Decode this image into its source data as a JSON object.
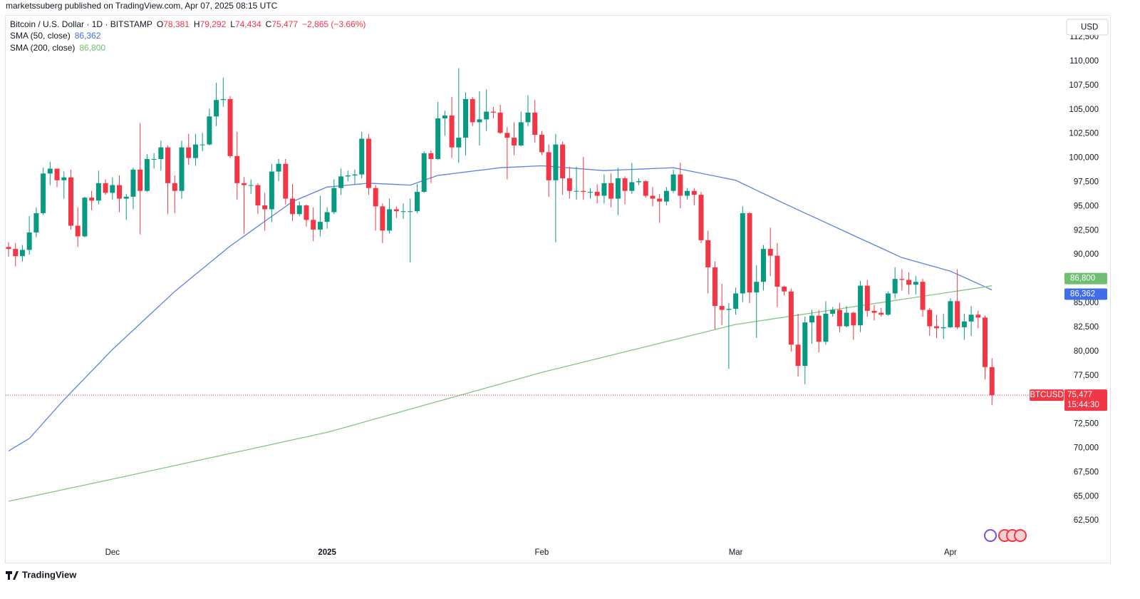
{
  "header": {
    "attribution": "marketssuberg published on TradingView.com, Apr 07, 2025 08:15 UTC",
    "brand": "TradingView"
  },
  "chart_data": {
    "type": "candlestick",
    "title": "Bitcoin / U.S. Dollar · 1D · BITSTAMP",
    "ohlc": [
      {
        "name": "O",
        "label": "78,381"
      },
      {
        "name": "H",
        "label": "79,292"
      },
      {
        "name": "L",
        "label": "74,434"
      },
      {
        "name": "C",
        "label": "75,477"
      }
    ],
    "change_label": "−2,865 (−3.66%)",
    "currency": "USD",
    "symbol": "BTCUSD",
    "last_label": "75,477",
    "countdown": "15:44:30",
    "up_color": "#089981",
    "down_color": "#f23645",
    "categories": [
      null,
      null,
      null,
      null,
      null,
      null,
      null,
      null,
      null,
      null,
      null,
      null,
      null,
      null,
      null,
      "Dec",
      null,
      null,
      null,
      null,
      null,
      null,
      null,
      null,
      null,
      null,
      null,
      null,
      null,
      null,
      null,
      null,
      null,
      null,
      null,
      null,
      null,
      null,
      null,
      null,
      null,
      null,
      null,
      null,
      null,
      null,
      "2025",
      null,
      null,
      null,
      null,
      null,
      null,
      null,
      null,
      null,
      null,
      null,
      null,
      null,
      null,
      null,
      null,
      null,
      null,
      null,
      null,
      null,
      null,
      null,
      null,
      null,
      null,
      null,
      null,
      null,
      null,
      "Feb",
      null,
      null,
      null,
      null,
      null,
      null,
      null,
      null,
      null,
      null,
      null,
      null,
      null,
      null,
      null,
      null,
      null,
      null,
      null,
      null,
      null,
      null,
      null,
      null,
      null,
      null,
      null,
      "Mar",
      null,
      null,
      null,
      null,
      null,
      null,
      null,
      null,
      null,
      null,
      null,
      null,
      null,
      null,
      null,
      null,
      null,
      null,
      null,
      null,
      null,
      null,
      null,
      null,
      null,
      null,
      null,
      null,
      null,
      null,
      "Apr",
      null,
      null,
      null,
      null,
      null,
      null
    ],
    "open": [
      90800,
      90600,
      89850,
      90500,
      92300,
      94300,
      98400,
      98900,
      97700,
      98000,
      93000,
      91900,
      95900,
      95600,
      97400,
      96400,
      97200,
      95800,
      96000,
      98800,
      96600,
      99900,
      99900,
      101100,
      97400,
      96600,
      101100,
      100000,
      101400,
      101400,
      104300,
      106000,
      106100,
      100200,
      97400,
      97200,
      97200,
      95100,
      94700,
      98600,
      99400,
      95800,
      94200,
      95100,
      93600,
      92600,
      93400,
      94400,
      96900,
      98100,
      98200,
      98300,
      102000,
      96900,
      95000,
      92500,
      94700,
      94500,
      94500,
      94500,
      96500,
      100500,
      99900,
      104100,
      104400,
      101100,
      102100,
      106100,
      103700,
      104000,
      104800,
      104700,
      102600,
      102100,
      101300,
      103700,
      104700,
      102400,
      100600,
      97700,
      101400,
      97900,
      96600,
      96600,
      96500,
      96500,
      96100,
      97400,
      95800,
      97900,
      96600,
      97500,
      97600,
      96100,
      95800,
      95500,
      96600,
      98300,
      96100,
      96600,
      96200,
      91500,
      88700,
      84700,
      84300,
      84400,
      86000,
      94300,
      86100,
      87200,
      90600,
      89900,
      86700,
      86200,
      80700,
      78500,
      83000,
      83700,
      81000,
      83900,
      84300,
      82600,
      84000,
      82700,
      86800,
      84200,
      84000,
      83800,
      86000,
      87500,
      87400,
      86900,
      87200,
      84300,
      82600,
      82400,
      82500,
      85200,
      82500,
      83100,
      83800,
      83500,
      78381
    ],
    "high": [
      91300,
      91200,
      91000,
      94000,
      94900,
      99000,
      99600,
      98700,
      98600,
      98800,
      94900,
      96000,
      96600,
      98700,
      97800,
      98000,
      98200,
      96300,
      99000,
      103600,
      100400,
      100500,
      101800,
      101300,
      98200,
      101800,
      102500,
      102500,
      102600,
      105100,
      107800,
      108300,
      106400,
      102700,
      98000,
      97800,
      97400,
      96400,
      99400,
      99900,
      99900,
      97300,
      95500,
      95200,
      94900,
      96100,
      94900,
      97800,
      98900,
      98700,
      98800,
      102700,
      102500,
      97200,
      95300,
      95800,
      95000,
      95300,
      95800,
      97300,
      100700,
      100800,
      105800,
      104900,
      106300,
      109300,
      106800,
      106300,
      106900,
      107100,
      105300,
      105500,
      103200,
      103700,
      104800,
      106500,
      106000,
      102800,
      101400,
      102500,
      101700,
      99100,
      99100,
      100100,
      96900,
      97300,
      98300,
      98400,
      99000,
      98100,
      99500,
      97900,
      97700,
      97000,
      96300,
      97000,
      98800,
      99500,
      96900,
      96900,
      96500,
      92500,
      89300,
      87000,
      85000,
      86600,
      95000,
      94400,
      88900,
      91000,
      92800,
      91200,
      86800,
      86500,
      83900,
      83600,
      84300,
      84300,
      85200,
      84600,
      85000,
      84700,
      84100,
      87300,
      87400,
      84800,
      84500,
      86200,
      88700,
      88500,
      88200,
      87800,
      87500,
      84500,
      83800,
      83900,
      85500,
      88500,
      83900,
      84700,
      84200,
      83700,
      79292
    ],
    "low": [
      89800,
      88800,
      89300,
      90000,
      91800,
      94100,
      97200,
      97000,
      95800,
      92600,
      90800,
      91800,
      94600,
      95200,
      96200,
      95700,
      94400,
      93600,
      94700,
      92100,
      96500,
      98900,
      98700,
      94200,
      94300,
      95800,
      99300,
      99200,
      100700,
      101300,
      103300,
      105300,
      100000,
      95700,
      92200,
      96300,
      94200,
      92500,
      93400,
      97600,
      95200,
      93500,
      94000,
      92900,
      91400,
      91900,
      92700,
      94200,
      96200,
      97600,
      97300,
      97900,
      96200,
      92500,
      91200,
      92200,
      93800,
      93700,
      89200,
      94300,
      96400,
      97400,
      99800,
      102300,
      100000,
      99500,
      100300,
      103300,
      101300,
      102800,
      104100,
      102500,
      97800,
      100300,
      101200,
      103300,
      101600,
      100300,
      96000,
      91300,
      96200,
      95800,
      95700,
      95700,
      95800,
      95300,
      95300,
      94900,
      94100,
      95200,
      96300,
      97200,
      95900,
      95000,
      93300,
      95100,
      96400,
      94800,
      95700,
      95100,
      91200,
      86000,
      82300,
      82700,
      78200,
      83800,
      85100,
      85000,
      81400,
      86300,
      87800,
      84600,
      85800,
      80000,
      77400,
      76600,
      80800,
      79900,
      80700,
      83600,
      82000,
      82500,
      81200,
      82000,
      83600,
      83200,
      83600,
      83700,
      85500,
      86300,
      85900,
      85900,
      83600,
      81600,
      81400,
      81300,
      82400,
      82300,
      81200,
      81600,
      82400,
      77100,
      74434
    ],
    "close": [
      90600,
      89850,
      90500,
      92300,
      94300,
      98400,
      98900,
      97700,
      98000,
      93000,
      91900,
      95900,
      95600,
      97400,
      96400,
      97200,
      95800,
      96000,
      98800,
      96600,
      99900,
      99900,
      101100,
      97400,
      96600,
      101100,
      100000,
      101400,
      101400,
      104300,
      106000,
      106100,
      100200,
      97400,
      97200,
      97200,
      95100,
      94700,
      98600,
      99400,
      95800,
      94200,
      95100,
      93600,
      92600,
      93400,
      94400,
      96900,
      98100,
      98200,
      98300,
      102000,
      96900,
      95000,
      92500,
      94700,
      94500,
      94500,
      94500,
      96500,
      100500,
      99900,
      104100,
      104400,
      101100,
      102100,
      106100,
      103700,
      104000,
      104800,
      104700,
      102600,
      102100,
      101300,
      103700,
      104700,
      102400,
      100600,
      97700,
      101400,
      97900,
      96600,
      96600,
      96500,
      96500,
      96100,
      97400,
      95800,
      97900,
      96600,
      97500,
      97600,
      96100,
      95800,
      95500,
      96600,
      98300,
      96100,
      96600,
      96200,
      91500,
      88700,
      84700,
      84300,
      84400,
      86000,
      94300,
      86100,
      87200,
      90600,
      89900,
      86700,
      86200,
      80700,
      78500,
      83000,
      83700,
      81000,
      83900,
      84300,
      82600,
      84000,
      82700,
      86800,
      84200,
      84000,
      83800,
      86000,
      87500,
      87400,
      86900,
      87200,
      84300,
      82600,
      82400,
      82500,
      85200,
      82500,
      83100,
      83800,
      83500,
      78381,
      75477
    ],
    "series": [
      {
        "name": "SMA (50, close)",
        "color": "#5b82e0",
        "label_color": "#3f6ee8",
        "last_label": "86,362",
        "values": [
          69700,
          70133,
          70567,
          71000,
          71800,
          72600,
          73400,
          74200,
          75000,
          75743,
          76486,
          77229,
          77971,
          78714,
          79457,
          80200,
          80867,
          81533,
          82200,
          82867,
          83533,
          84200,
          84867,
          85533,
          86200,
          86788,
          87375,
          87963,
          88550,
          89138,
          89725,
          90313,
          90900,
          91411,
          91922,
          92433,
          92944,
          93456,
          93967,
          94478,
          94989,
          95500,
          95800,
          96100,
          96400,
          96700,
          97000,
          97067,
          97133,
          97200,
          97267,
          97333,
          97400,
          97367,
          97333,
          97300,
          97267,
          97233,
          97200,
          97450,
          97700,
          97950,
          98200,
          98289,
          98378,
          98467,
          98556,
          98644,
          98733,
          98822,
          98911,
          99000,
          99033,
          99067,
          99100,
          99133,
          99167,
          99200,
          99144,
          99089,
          99033,
          98978,
          98922,
          98867,
          98811,
          98756,
          98700,
          98730,
          98760,
          98790,
          98820,
          98850,
          98880,
          98910,
          98940,
          98970,
          99000,
          98856,
          98711,
          98567,
          98422,
          98278,
          98133,
          97989,
          97844,
          97700,
          97357,
          97014,
          96671,
          96329,
          95986,
          95643,
          95300,
          94970,
          94640,
          94310,
          93980,
          93650,
          93320,
          92990,
          92660,
          92330,
          92000,
          91671,
          91343,
          91014,
          90686,
          90357,
          90029,
          89700,
          89500,
          89300,
          89100,
          88900,
          88700,
          88500,
          88300,
          87977,
          87654,
          87331,
          87008,
          86685,
          86362
        ]
      },
      {
        "name": "SMA (200, close)",
        "color": "#81c784",
        "label_color": "#6fbf73",
        "last_label": "86,800",
        "values": [
          64500,
          64653,
          64806,
          64959,
          65112,
          65265,
          65418,
          65571,
          65724,
          65877,
          66030,
          66183,
          66336,
          66489,
          66642,
          66795,
          66951,
          67107,
          67263,
          67419,
          67575,
          67731,
          67887,
          68043,
          68199,
          68355,
          68511,
          68667,
          68823,
          68979,
          69135,
          69291,
          69447,
          69603,
          69759,
          69915,
          70071,
          70227,
          70383,
          70539,
          70695,
          70851,
          71007,
          71163,
          71319,
          71475,
          71631,
          71831,
          72031,
          72231,
          72431,
          72631,
          72831,
          73031,
          73231,
          73431,
          73631,
          73831,
          74031,
          74231,
          74431,
          74631,
          74831,
          75031,
          75231,
          75431,
          75631,
          75831,
          76031,
          76231,
          76431,
          76631,
          76831,
          77031,
          77231,
          77431,
          77631,
          77831,
          78008,
          78185,
          78362,
          78539,
          78716,
          78893,
          79070,
          79247,
          79424,
          79601,
          79778,
          79955,
          80132,
          80309,
          80486,
          80663,
          80840,
          81017,
          81194,
          81371,
          81548,
          81725,
          81902,
          82079,
          82256,
          82433,
          82610,
          82787,
          82895,
          83003,
          83111,
          83219,
          83327,
          83435,
          83543,
          83651,
          83759,
          83867,
          83975,
          84083,
          84191,
          84299,
          84407,
          84515,
          84623,
          84731,
          84839,
          84947,
          85055,
          85163,
          85271,
          85379,
          85487,
          85595,
          85703,
          85811,
          85919,
          86027,
          86135,
          86243,
          86351,
          86459,
          86567,
          86675,
          86800
        ]
      }
    ],
    "ylim": [
      60150,
      114720
    ],
    "yticks": [
      {
        "value": 62500,
        "label": "62,500"
      },
      {
        "value": 65000,
        "label": "65,000"
      },
      {
        "value": 67500,
        "label": "67,500"
      },
      {
        "value": 70000,
        "label": "70,000"
      },
      {
        "value": 72500,
        "label": "72,500"
      },
      {
        "value": 75000,
        "label": "75,000"
      },
      {
        "value": 77500,
        "label": "77,500"
      },
      {
        "value": 80000,
        "label": "80,000"
      },
      {
        "value": 82500,
        "label": "82,500"
      },
      {
        "value": 85000,
        "label": "85,000"
      },
      {
        "value": 87500,
        "label": "87,500"
      },
      {
        "value": 90000,
        "label": "90,000"
      },
      {
        "value": 92500,
        "label": "92,500"
      },
      {
        "value": 95000,
        "label": "95,000"
      },
      {
        "value": 97500,
        "label": "97,500"
      },
      {
        "value": 100000,
        "label": "100,000"
      },
      {
        "value": 102500,
        "label": "102,500"
      },
      {
        "value": 105000,
        "label": "105,000"
      },
      {
        "value": 107500,
        "label": "107,500"
      },
      {
        "value": 110000,
        "label": "110,000"
      },
      {
        "value": 112500,
        "label": "112,500"
      }
    ],
    "grid": false
  }
}
